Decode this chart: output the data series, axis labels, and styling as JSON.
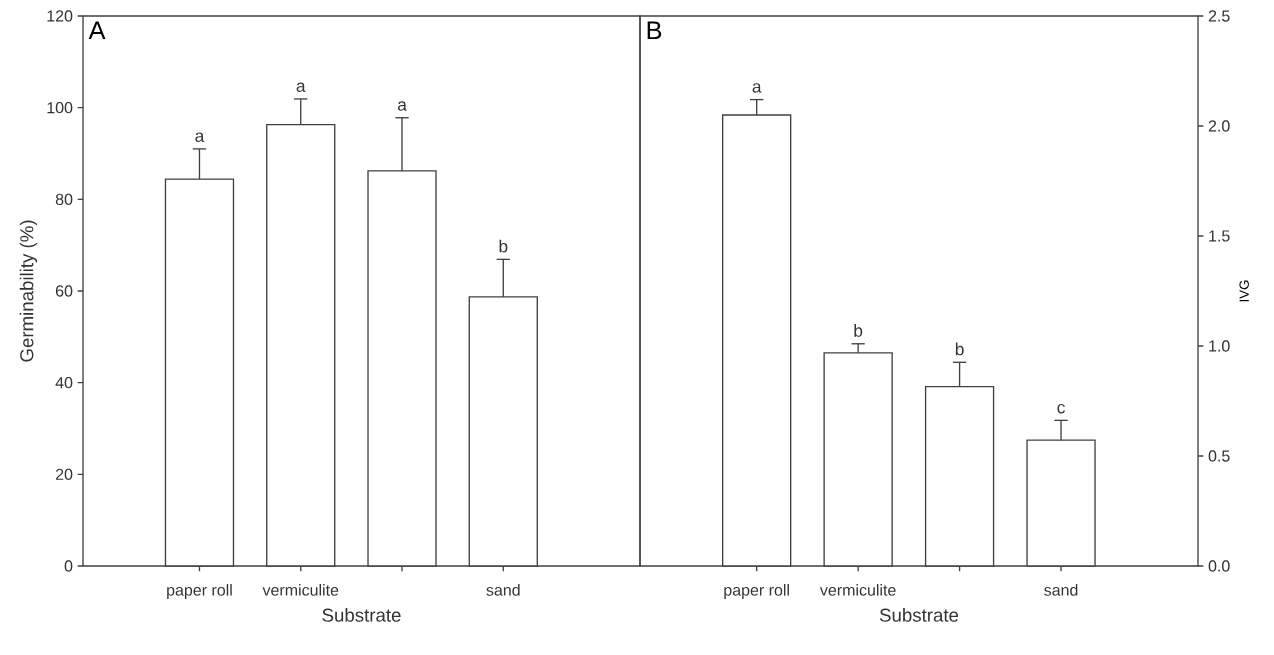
{
  "chart_data": [
    {
      "type": "bar",
      "title": "A",
      "xlabel": "Substrate",
      "ylabel": "Germinability (%)",
      "categories": [
        "paper roll",
        "vermiculite",
        null,
        "sand"
      ],
      "ylim": [
        0,
        120
      ],
      "yticks": [
        0,
        20,
        40,
        60,
        80,
        100,
        120
      ],
      "series": [
        {
          "color": "#ffffff",
          "axis": "y",
          "values": [
            84.4,
            96.3,
            86.2,
            58.7
          ],
          "errors": [
            [
              84.4,
              91.0
            ],
            [
              96.3,
              101.9
            ],
            [
              86.2,
              97.8
            ],
            [
              58.7,
              66.9
            ]
          ]
        }
      ],
      "annotations": [
        "a",
        "a",
        "a",
        "b"
      ]
    },
    {
      "type": "bar",
      "title": "B",
      "xlabel": "Substrate",
      "y2label": "IVG",
      "categories": [
        "paper roll",
        "vermiculite",
        null,
        "sand"
      ],
      "y2lim": [
        0,
        2.5
      ],
      "y2ticks": [
        {
          "value": 0,
          "label": "0.0"
        },
        {
          "value": 0.5,
          "label": "0.5"
        },
        {
          "value": 1,
          "label": "1.0"
        },
        {
          "value": 1.5,
          "label": "1.5"
        },
        {
          "value": 2,
          "label": "2.0"
        },
        {
          "value": 2.5,
          "label": "2.5"
        }
      ],
      "series": [
        {
          "color": "#ffffff",
          "axis": "y2",
          "values": [
            2.05,
            0.969,
            0.815,
            0.572
          ],
          "errors": [
            [
              2.05,
              2.12
            ],
            [
              0.969,
              1.01
            ],
            [
              0.815,
              0.926
            ],
            [
              0.572,
              0.662
            ]
          ]
        }
      ],
      "annotations": [
        "a",
        "b",
        "b",
        "c"
      ]
    }
  ]
}
